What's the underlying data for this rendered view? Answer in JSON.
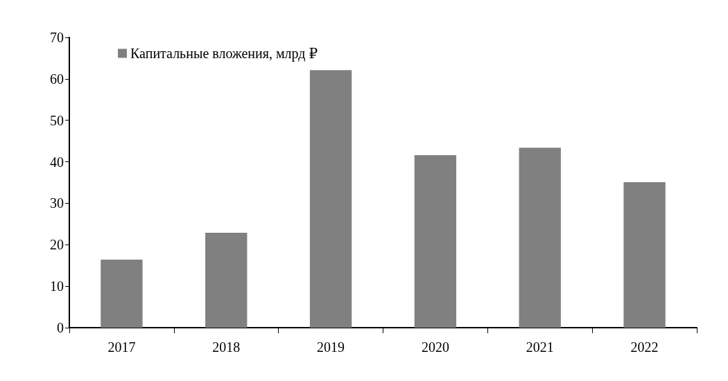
{
  "chart_data": {
    "type": "bar",
    "categories": [
      "2017",
      "2018",
      "2019",
      "2020",
      "2021",
      "2022"
    ],
    "series": [
      {
        "name": "Капитальные вложения, млрд ₽",
        "color": "#808080",
        "values": [
          16.4,
          22.9,
          62.1,
          41.6,
          43.4,
          35.1
        ]
      }
    ],
    "ylim": [
      0,
      70
    ],
    "yticks": [
      0,
      10,
      20,
      30,
      40,
      50,
      60,
      70
    ],
    "grid": false,
    "legend": "top left"
  }
}
